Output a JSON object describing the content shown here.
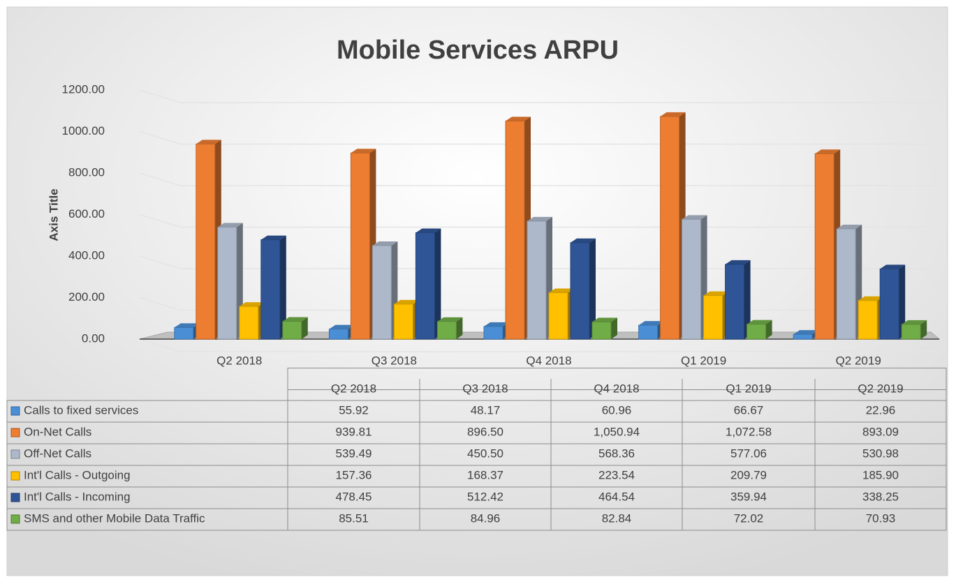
{
  "chart_data": {
    "type": "bar",
    "title": "Mobile Services ARPU",
    "y_axis_title": "Axis Title",
    "categories": [
      "Q2 2018",
      "Q3 2018",
      "Q4 2018",
      "Q1 2019",
      "Q2  2019"
    ],
    "series": [
      {
        "name": "Calls to fixed services",
        "color": "#4a8fd6",
        "values": [
          55.92,
          48.17,
          60.96,
          66.67,
          22.96
        ],
        "value_labels": [
          "55.92",
          "48.17",
          "60.96",
          "66.67",
          "22.96"
        ]
      },
      {
        "name": "On-Net Calls",
        "color": "#ed7d31",
        "values": [
          939.81,
          896.5,
          1050.94,
          1072.58,
          893.09
        ],
        "value_labels": [
          "939.81",
          "896.50",
          "1,050.94",
          "1,072.58",
          "893.09"
        ]
      },
      {
        "name": "Off-Net Calls",
        "color": "#adb9ca",
        "values": [
          539.49,
          450.5,
          568.36,
          577.06,
          530.98
        ],
        "value_labels": [
          "539.49",
          "450.50",
          "568.36",
          "577.06",
          "530.98"
        ]
      },
      {
        "name": "Int'l Calls - Outgoing",
        "color": "#ffc000",
        "values": [
          157.36,
          168.37,
          223.54,
          209.79,
          185.9
        ],
        "value_labels": [
          "157.36",
          "168.37",
          "223.54",
          "209.79",
          "185.90"
        ]
      },
      {
        "name": "Int'l Calls - Incoming",
        "color": "#2f5597",
        "values": [
          478.45,
          512.42,
          464.54,
          359.94,
          338.25
        ],
        "value_labels": [
          "478.45",
          "512.42",
          "464.54",
          "359.94",
          "338.25"
        ]
      },
      {
        "name": "SMS and other Mobile Data Traffic",
        "color": "#70ad47",
        "values": [
          85.51,
          84.96,
          82.84,
          72.02,
          70.93
        ],
        "value_labels": [
          "85.51",
          "84.96",
          "82.84",
          "72.02",
          "70.93"
        ]
      }
    ],
    "ylim": [
      0,
      1200
    ],
    "yticks": [
      {
        "value": 0,
        "label": "0.00"
      },
      {
        "value": 200,
        "label": "200.00"
      },
      {
        "value": 400,
        "label": "400.00"
      },
      {
        "value": 600,
        "label": "600.00"
      },
      {
        "value": 800,
        "label": "800.00"
      },
      {
        "value": 1000,
        "label": "1000.00"
      },
      {
        "value": 1200,
        "label": "1200.00"
      }
    ],
    "grid": true
  }
}
